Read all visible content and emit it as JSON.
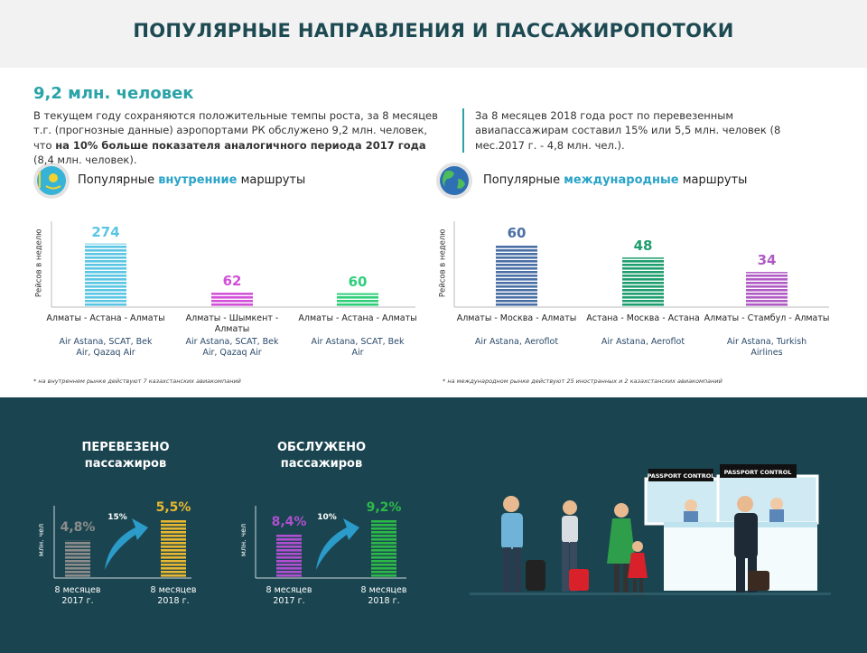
{
  "header": {
    "title": "ПОПУЛЯРНЫЕ НАПРАВЛЕНИЯ И ПАССАЖИРОПОТОКИ"
  },
  "summary": {
    "headline": "9,2 млн. человек",
    "text": "В текущем году сохраняются положительные темпы роста, за 8 месяцев т.г. (прогнозные данные) аэропортами РК обслужено 9,2 млн. человек, что ",
    "text_bold": "на 10% больше показателя аналогичного периода 2017 года",
    "text_end": " (8,4 млн. человек).",
    "side_text": "За 8 месяцев 2018 года рост по перевезенным авиапассажирам составил 15% или 5,5 млн. человек (8 мес.2017 г. - 4,8 млн. чел.)."
  },
  "chart_data": [
    {
      "type": "bar",
      "title": [
        "Популярные ",
        "внутренние",
        " маршруты"
      ],
      "ylabel": "Рейсов в неделю",
      "categories": [
        "Алматы - Астана - Алматы",
        "Алматы - Шымкент - Алматы",
        "Алматы - Астана - Алматы"
      ],
      "values": [
        274,
        62,
        60
      ],
      "colors": [
        "#5bc6e3",
        "#d24fd8",
        "#2fcf7a"
      ],
      "airlines": [
        "Air Astana, SCAT, Bek Air, Qazaq Air",
        "Air Astana, SCAT, Bek Air, Qazaq Air",
        "Air Astana, SCAT, Bek Air"
      ],
      "note": "* на внутреннем рынке действуют 7 казахстанских авиакомпаний",
      "ylim": [
        0,
        370
      ]
    },
    {
      "type": "bar",
      "title": [
        "Популярные ",
        "международные",
        " маршруты"
      ],
      "ylabel": "Рейсов в неделю",
      "categories": [
        "Алматы - Москва - Алматы",
        "Астана - Москва - Астана",
        "Алматы - Стамбул - Алматы"
      ],
      "values": [
        60,
        48,
        34
      ],
      "colors": [
        "#4a6fa5",
        "#1e9e6e",
        "#b05bc4"
      ],
      "airlines": [
        "Air Astana, Aeroflot",
        "Air Astana, Aeroflot",
        "Air Astana, Turkish Airlines"
      ],
      "note": "* на международном рынке действуют 25 иностранных и 2 казахстанских авиакомпаний",
      "ylim": [
        0,
        83
      ]
    },
    {
      "type": "bar",
      "title": [
        "ПЕРЕВЕЗЕНО",
        "пассажиров"
      ],
      "ylabel": "млн. чел",
      "categories": [
        "8 месяцев 2017 г.",
        "8 месяцев 2018 г."
      ],
      "values": [
        4.8,
        5.5
      ],
      "value_labels": [
        "4,8%",
        "5,5%"
      ],
      "colors": [
        "#8c8c8c",
        "#e8b830"
      ],
      "annotation": "15%",
      "ylim": [
        3.5,
        6
      ]
    },
    {
      "type": "bar",
      "title": [
        "ОБСЛУЖЕНО",
        "пассажиров"
      ],
      "ylabel": "млн. чел",
      "categories": [
        "8 месяцев 2017 г.",
        "8 месяцев 2018 г."
      ],
      "values": [
        8.4,
        9.2
      ],
      "value_labels": [
        "8,4%",
        "9,2%"
      ],
      "colors": [
        "#b04fd0",
        "#2db84a"
      ],
      "annotation": "10%",
      "ylim": [
        6,
        10
      ]
    }
  ],
  "illustration": {
    "signs": [
      "PASSPORT CONTROL",
      "PASSPORT CONTROL"
    ]
  }
}
